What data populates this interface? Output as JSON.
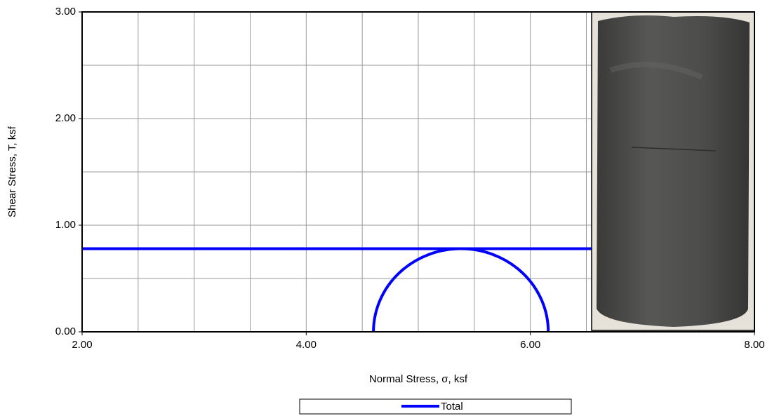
{
  "chart_data": {
    "type": "mohr",
    "x_label": "Normal Stress, σ, ksf",
    "y_label": "Shear Stress, T, ksf",
    "xlim": [
      2,
      8
    ],
    "ylim": [
      0,
      3
    ],
    "xticks": [
      {
        "value": 2,
        "label": "2.00"
      },
      {
        "value": 4,
        "label": "4.00"
      },
      {
        "value": 6,
        "label": "6.00"
      },
      {
        "value": 8,
        "label": "8.00"
      }
    ],
    "yticks": [
      {
        "value": 0,
        "label": "0.00"
      },
      {
        "value": 1,
        "label": "1.00"
      },
      {
        "value": 2,
        "label": "2.00"
      },
      {
        "value": 3,
        "label": "3.00"
      }
    ],
    "xgrid": [
      2,
      2.5,
      3,
      3.5,
      4,
      4.5,
      5,
      5.5,
      6,
      6.5,
      7,
      7.5,
      8
    ],
    "ygrid": [
      0,
      0.5,
      1,
      1.5,
      2,
      2.5,
      3
    ],
    "series": [
      {
        "name": "Total",
        "color": "#0000ff",
        "x": [
          2,
          6.55
        ],
        "values": [
          0.78,
          0.78
        ],
        "circle": {
          "center": 5.38,
          "radius": 0.78
        }
      }
    ]
  }
}
